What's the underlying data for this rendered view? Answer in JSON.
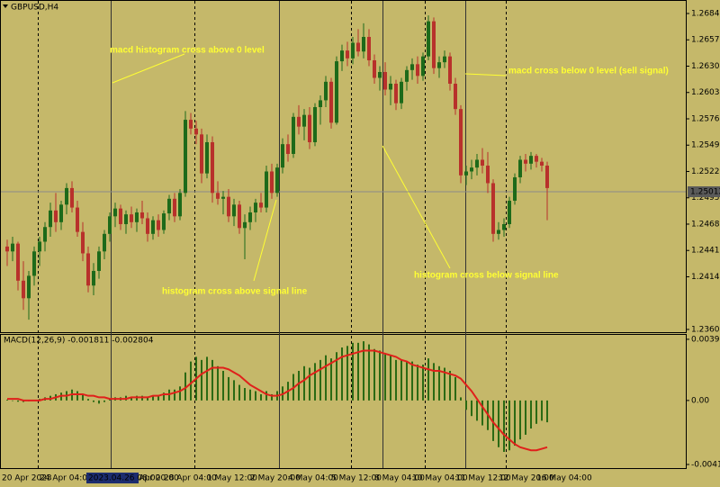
{
  "chart_data": [
    {
      "type": "candlestick",
      "title": "GBPUSD,H4",
      "categories": [
        "20 Apr 2023",
        null,
        null,
        null,
        null,
        null,
        null,
        "24 Apr 04:00",
        null,
        null,
        null,
        null,
        null,
        null,
        null,
        null,
        null,
        null,
        null,
        null,
        null,
        null,
        null,
        "27 Apr 20:00",
        null,
        null,
        null,
        null,
        null,
        null,
        "28 Apr 04:00",
        null,
        null,
        null,
        null,
        null,
        null,
        null,
        "1 May 12:00",
        null,
        null,
        null,
        null,
        null,
        null,
        null,
        "2 May 20:00",
        null,
        null,
        null,
        null,
        null,
        null,
        "4 May 04:00",
        null,
        null,
        null,
        null,
        null,
        null,
        null,
        "5 May 12:00",
        null,
        null,
        null,
        null,
        null,
        null,
        null,
        "8 May 04:00",
        null,
        null,
        null,
        null,
        null,
        null,
        "10 May 04:00",
        null,
        null,
        null,
        null,
        null,
        null,
        null,
        "11 May 12:00",
        null,
        null,
        null,
        null,
        null,
        null,
        null,
        "12 May 20:00",
        null,
        null,
        null,
        null,
        null,
        null,
        "16 May 04:00",
        null
      ],
      "crosshair_time": "2023.04.26 08:00",
      "open": [
        1.2445,
        1.244,
        1.2448,
        1.241,
        1.2392,
        1.2415,
        1.244,
        1.245,
        1.2465,
        1.2482,
        1.247,
        1.2488,
        1.2505,
        1.2485,
        1.246,
        1.2438,
        1.2405,
        1.242,
        1.244,
        1.2458,
        1.2476,
        1.2484,
        1.2468,
        1.2478,
        1.247,
        1.248,
        1.2474,
        1.2458,
        1.2472,
        1.2462,
        1.2479,
        1.2494,
        1.2476,
        1.25,
        1.2575,
        1.2566,
        1.256,
        1.252,
        1.2552,
        1.25,
        1.2494,
        1.2496,
        1.2476,
        1.2488,
        1.2464,
        1.247,
        1.248,
        1.249,
        1.2485,
        1.2522,
        1.25,
        1.2526,
        1.255,
        1.254,
        1.2578,
        1.2568,
        1.258,
        1.2552,
        1.2588,
        1.2595,
        1.2614,
        1.2572,
        1.2635,
        1.2646,
        1.2638,
        1.2654,
        1.2645,
        1.266,
        1.2636,
        1.2618,
        1.2624,
        1.2606,
        1.2612,
        1.2592,
        1.2614,
        1.2626,
        1.2632,
        1.262,
        1.264,
        1.2676,
        1.2628,
        1.2634,
        1.264,
        1.2612,
        1.2586,
        1.2518,
        1.2522,
        1.2526,
        1.2534,
        1.2528,
        1.251,
        1.2458,
        1.2462,
        1.2468,
        1.2492,
        1.2516,
        1.2534,
        1.253,
        1.2538,
        1.2532,
        1.2528
      ],
      "high": [
        1.2452,
        1.2455,
        1.245,
        1.243,
        1.242,
        1.2445,
        1.2455,
        1.247,
        1.249,
        1.25,
        1.2492,
        1.251,
        1.2512,
        1.2492,
        1.247,
        1.2445,
        1.2428,
        1.2445,
        1.2462,
        1.248,
        1.249,
        1.2488,
        1.2482,
        1.2486,
        1.2484,
        1.2492,
        1.248,
        1.2476,
        1.2478,
        1.2482,
        1.2498,
        1.25,
        1.2504,
        1.2584,
        1.2582,
        1.2574,
        1.2566,
        1.256,
        1.2558,
        1.2512,
        1.2502,
        1.2504,
        1.2494,
        1.2492,
        1.2478,
        1.2486,
        1.2494,
        1.25,
        1.2528,
        1.253,
        1.253,
        1.2556,
        1.256,
        1.2582,
        1.259,
        1.2586,
        1.2588,
        1.2592,
        1.26,
        1.262,
        1.2618,
        1.264,
        1.2652,
        1.2655,
        1.266,
        1.2668,
        1.2674,
        1.2668,
        1.2642,
        1.263,
        1.2634,
        1.262,
        1.2616,
        1.2618,
        1.263,
        1.2638,
        1.264,
        1.2644,
        1.2682,
        1.268,
        1.264,
        1.2646,
        1.2644,
        1.2618,
        1.259,
        1.2528,
        1.2534,
        1.254,
        1.2546,
        1.2542,
        1.2514,
        1.247,
        1.2474,
        1.2496,
        1.252,
        1.2538,
        1.254,
        1.2542,
        1.254,
        1.2536,
        1.2532
      ],
      "low": [
        1.2425,
        1.243,
        1.24,
        1.238,
        1.237,
        1.2405,
        1.2425,
        1.244,
        1.2455,
        1.246,
        1.2462,
        1.2478,
        1.248,
        1.2455,
        1.243,
        1.2398,
        1.2395,
        1.2412,
        1.2432,
        1.245,
        1.2465,
        1.2462,
        1.2458,
        1.2464,
        1.246,
        1.2468,
        1.245,
        1.2452,
        1.2455,
        1.2458,
        1.2472,
        1.247,
        1.2472,
        1.2496,
        1.256,
        1.255,
        1.251,
        1.2515,
        1.249,
        1.2488,
        1.2478,
        1.247,
        1.2466,
        1.2458,
        1.2432,
        1.2462,
        1.247,
        1.248,
        1.248,
        1.2494,
        1.2496,
        1.252,
        1.2532,
        1.2536,
        1.256,
        1.2554,
        1.2545,
        1.2548,
        1.257,
        1.2588,
        1.2566,
        1.257,
        1.2625,
        1.263,
        1.2632,
        1.264,
        1.2638,
        1.263,
        1.2612,
        1.2605,
        1.26,
        1.259,
        1.2585,
        1.2586,
        1.2605,
        1.2616,
        1.2612,
        1.2615,
        1.2636,
        1.2622,
        1.2618,
        1.2628,
        1.2605,
        1.258,
        1.251,
        1.2508,
        1.2514,
        1.2518,
        1.252,
        1.25,
        1.245,
        1.2452,
        1.2455,
        1.2464,
        1.2488,
        1.251,
        1.2522,
        1.2524,
        1.2526,
        1.2522,
        1.2472
      ],
      "close": [
        1.244,
        1.2448,
        1.241,
        1.2392,
        1.2415,
        1.244,
        1.245,
        1.2465,
        1.2482,
        1.247,
        1.2488,
        1.2505,
        1.2485,
        1.246,
        1.2438,
        1.2405,
        1.242,
        1.244,
        1.2458,
        1.2476,
        1.2484,
        1.2468,
        1.2478,
        1.247,
        1.248,
        1.2474,
        1.2458,
        1.2472,
        1.2462,
        1.2479,
        1.2494,
        1.2476,
        1.25,
        1.2575,
        1.2566,
        1.256,
        1.252,
        1.2552,
        1.25,
        1.2494,
        1.2496,
        1.2476,
        1.2488,
        1.2464,
        1.247,
        1.248,
        1.249,
        1.2485,
        1.2522,
        1.25,
        1.2526,
        1.255,
        1.254,
        1.2578,
        1.2568,
        1.258,
        1.2552,
        1.2588,
        1.2595,
        1.2614,
        1.2572,
        1.2635,
        1.2646,
        1.2638,
        1.2654,
        1.2645,
        1.266,
        1.2636,
        1.2618,
        1.2624,
        1.2606,
        1.2612,
        1.2592,
        1.2614,
        1.2626,
        1.2632,
        1.262,
        1.264,
        1.2676,
        1.2628,
        1.2634,
        1.264,
        1.2612,
        1.2586,
        1.2518,
        1.2522,
        1.2526,
        1.2534,
        1.2528,
        1.251,
        1.2458,
        1.2462,
        1.2468,
        1.2492,
        1.2516,
        1.2534,
        1.253,
        1.2538,
        1.2532,
        1.2528,
        1.2505
      ],
      "up_color": "#1d6a1a",
      "down_color": "#b8312b",
      "ylim": [
        1.23572,
        1.2696
      ],
      "yticks": [
        {
          "value": 1.2684,
          "label": "1.26840"
        },
        {
          "value": 1.2657,
          "label": "1.26570"
        },
        {
          "value": 1.263,
          "label": "1.26300"
        },
        {
          "value": 1.2603,
          "label": "1.26030"
        },
        {
          "value": 1.2576,
          "label": "1.25760"
        },
        {
          "value": 1.2549,
          "label": "1.25490"
        },
        {
          "value": 1.2522,
          "label": "1.25220"
        },
        {
          "value": 1.2495,
          "label": "1.24950"
        },
        {
          "value": 1.2468,
          "label": "1.24680"
        },
        {
          "value": 1.2441,
          "label": "1.24410"
        },
        {
          "value": 1.2414,
          "label": "1.24140"
        },
        {
          "value": 1.236,
          "label": "1.23600"
        }
      ],
      "current_price": 1.25012,
      "annotations": [
        "macd histogram cross above 0 level",
        "macd cross below 0 level (sell signal)",
        "histogram cross above signal line",
        "histogram cross below signal line"
      ]
    },
    {
      "type": "macd",
      "title": "MACD(12,26,9) -0.001811 -0.002804",
      "histogram": {
        "color": "#2b6a14",
        "values": [
          5e-05,
          -3e-05,
          -8e-05,
          -0.0001,
          -5e-05,
          2e-05,
          0.0001,
          0.0002,
          0.0003,
          0.0004,
          0.0005,
          0.0006,
          0.0007,
          0.0006,
          0.0004,
          0.0001,
          -0.0001,
          -0.0002,
          -0.0001,
          0.0001,
          0.0002,
          0.0002,
          0.0003,
          0.0002,
          0.0003,
          0.0003,
          0.0002,
          0.0003,
          0.0003,
          0.0005,
          0.0007,
          0.0007,
          0.0009,
          0.0018,
          0.0025,
          0.0028,
          0.0026,
          0.0028,
          0.0026,
          0.0022,
          0.0019,
          0.0015,
          0.0013,
          0.001,
          0.0008,
          0.0007,
          0.0006,
          0.0004,
          0.0006,
          0.0004,
          0.0006,
          0.0009,
          0.0012,
          0.0017,
          0.0019,
          0.0022,
          0.0021,
          0.0024,
          0.0026,
          0.0029,
          0.0027,
          0.0031,
          0.0034,
          0.0035,
          0.0037,
          0.0037,
          0.0038,
          0.0036,
          0.0033,
          0.0032,
          0.003,
          0.0029,
          0.0026,
          0.0026,
          0.0025,
          0.0025,
          0.0023,
          0.0023,
          0.0027,
          0.0024,
          0.0022,
          0.0021,
          0.0019,
          0.0015,
          0.0002,
          -0.0006,
          -0.001,
          -0.0013,
          -0.0016,
          -0.0019,
          -0.0026,
          -0.003,
          -0.0033,
          -0.0032,
          -0.0029,
          -0.0025,
          -0.0022,
          -0.0018,
          -0.0015,
          -0.0013,
          -0.0014
        ]
      },
      "signal": {
        "color": "#e0201b",
        "values": [
          0.0001,
          0.0001,
          0.0001,
          0,
          0,
          0,
          0,
          0.0001,
          0.0001,
          0.0002,
          0.0003,
          0.0003,
          0.0004,
          0.0004,
          0.0004,
          0.0003,
          0.0003,
          0.0002,
          0.0002,
          0.0001,
          0.0001,
          0.0001,
          0.0001,
          0.0002,
          0.0002,
          0.0002,
          0.0002,
          0.0003,
          0.0003,
          0.0004,
          0.0004,
          0.0005,
          0.0006,
          0.0008,
          0.0011,
          0.0014,
          0.0017,
          0.0019,
          0.0021,
          0.0021,
          0.0021,
          0.002,
          0.0018,
          0.0016,
          0.0013,
          0.001,
          0.0008,
          0.0006,
          0.0004,
          0.0003,
          0.0003,
          0.0004,
          0.0006,
          0.0008,
          0.0011,
          0.0013,
          0.0016,
          0.0018,
          0.002,
          0.0022,
          0.0024,
          0.0026,
          0.0028,
          0.0029,
          0.003,
          0.0031,
          0.0032,
          0.0032,
          0.0032,
          0.0031,
          0.003,
          0.0029,
          0.0028,
          0.0026,
          0.0025,
          0.0023,
          0.0022,
          0.0021,
          0.002,
          0.0019,
          0.0019,
          0.0018,
          0.0017,
          0.0016,
          0.0014,
          0.001,
          0.0006,
          0.0001,
          -0.0004,
          -0.0009,
          -0.0014,
          -0.0018,
          -0.0022,
          -0.0025,
          -0.0028,
          -0.003,
          -0.0031,
          -0.0032,
          -0.0032,
          -0.0031,
          -0.003
        ]
      },
      "ylim": [
        -0.00434,
        0.00421
      ],
      "yticks": [
        0.003926,
        {
          "value": 0,
          "label": "0.00"
        },
        -0.004108
      ]
    }
  ]
}
